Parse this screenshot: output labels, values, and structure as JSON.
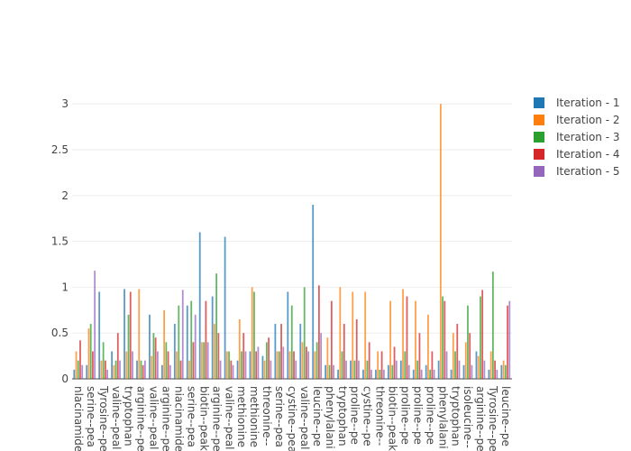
{
  "chart_data": {
    "type": "bar",
    "categories": [
      "nlacinamide-",
      "serine--pea",
      "Tyrosine--pe",
      "valine--peal",
      "tryptophan",
      "arginine--pe",
      "valine--peal",
      "arginine--pe",
      "niacinamide-",
      "serine--pea",
      "biotin--peak",
      "arginine--pe",
      "valine--peal",
      "methionine",
      "methionine",
      "threonine--",
      "serine--pea",
      "cystine--pea",
      "valine--peal",
      "leucine--pe",
      "phenylalani",
      "tryptophan",
      "proline--pe",
      "cystine--pe",
      "threonine--",
      "biotin--peak3",
      "proline--pe",
      "proline--pe",
      "proline--pe",
      "phenylalani",
      "tryptophan",
      "isoleucine--",
      "arginine--pe",
      "Tyrosine--pe",
      "leucine--pe"
    ],
    "series": [
      {
        "name": "Iteration - 1",
        "color": "#1f77b4",
        "values": [
          0.1,
          0.15,
          0.95,
          0.3,
          0.98,
          0.2,
          0.7,
          0.15,
          0.6,
          0.8,
          1.6,
          0.9,
          1.55,
          0.2,
          0.3,
          0.25,
          0.6,
          0.95,
          0.6,
          1.9,
          0.15,
          0.1,
          0.2,
          0.1,
          0.1,
          0.15,
          0.2,
          0.1,
          0.15,
          0.2,
          0.1,
          0.15,
          0.3,
          0.1,
          0.15
        ]
      },
      {
        "name": "Iteration - 2",
        "color": "#ff7f0e",
        "values": [
          0.3,
          0.55,
          0.2,
          0.15,
          0.3,
          0.98,
          0.25,
          0.75,
          0.3,
          0.2,
          0.4,
          0.6,
          0.3,
          0.65,
          1.0,
          0.2,
          0.3,
          0.3,
          0.4,
          0.3,
          0.45,
          1.0,
          0.95,
          0.95,
          0.3,
          0.85,
          0.98,
          0.85,
          0.7,
          3.0,
          0.5,
          0.4,
          0.25,
          0.3,
          0.2
        ]
      },
      {
        "name": "Iteration - 3",
        "color": "#2ca02c",
        "values": [
          0.2,
          0.6,
          0.4,
          0.2,
          0.7,
          0.2,
          0.5,
          0.4,
          0.8,
          0.85,
          0.4,
          1.15,
          0.3,
          0.3,
          0.95,
          0.4,
          0.3,
          0.8,
          1.0,
          0.4,
          0.15,
          0.3,
          0.2,
          0.2,
          0.1,
          0.15,
          0.3,
          0.2,
          0.1,
          0.9,
          0.3,
          0.8,
          0.9,
          1.17,
          0.15
        ]
      },
      {
        "name": "Iteration - 4",
        "color": "#d62728",
        "values": [
          0.42,
          0.3,
          0.2,
          0.5,
          0.95,
          0.15,
          0.45,
          0.3,
          0.2,
          0.4,
          0.85,
          0.5,
          0.2,
          0.5,
          0.3,
          0.45,
          0.6,
          0.3,
          0.35,
          1.02,
          0.85,
          0.6,
          0.65,
          0.4,
          0.3,
          0.35,
          0.9,
          0.5,
          0.3,
          0.85,
          0.6,
          0.5,
          0.97,
          0.2,
          0.8
        ]
      },
      {
        "name": "Iteration - 5",
        "color": "#9467bd",
        "values": [
          0.15,
          1.18,
          0.1,
          0.2,
          0.3,
          0.2,
          0.3,
          0.15,
          0.97,
          0.7,
          0.4,
          0.2,
          0.15,
          0.3,
          0.35,
          0.2,
          0.35,
          0.2,
          0.3,
          0.5,
          0.15,
          0.2,
          0.2,
          0.1,
          0.1,
          0.2,
          0.15,
          0.1,
          0.1,
          0.3,
          0.2,
          0.15,
          0.2,
          0.1,
          0.85
        ]
      }
    ],
    "ylim": [
      0,
      3.15
    ],
    "yticks": [
      0,
      0.5,
      1,
      1.5,
      2,
      2.5,
      3
    ],
    "grid": true,
    "legend": "right"
  }
}
